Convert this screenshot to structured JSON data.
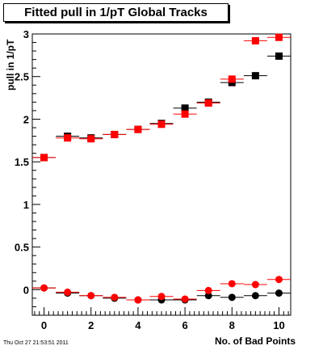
{
  "title": "Fitted pull in 1/pT  Global Tracks",
  "timestamp": "Thu Oct 27 21:53:51 2011",
  "colors": {
    "series_black": "#000000",
    "series_red": "#ff0000",
    "axis": "#000000"
  },
  "chart_data": {
    "type": "scatter",
    "title": "Fitted pull in 1/pT  Global Tracks",
    "xlabel": "No. of Bad Points",
    "ylabel": "pull in 1/pT",
    "xlim": [
      -0.5,
      10.5
    ],
    "ylim": [
      -0.3,
      3.0
    ],
    "xticks": [
      "0",
      "2",
      "4",
      "6",
      "8",
      "10"
    ],
    "yticks": [
      "0",
      "0.5",
      "1",
      "1.5",
      "2",
      "2.5",
      "3"
    ],
    "grid": false,
    "series": [
      {
        "marker": "square",
        "color": "#000000",
        "x": [
          0,
          1,
          2,
          3,
          4,
          5,
          6,
          7,
          8,
          9,
          10
        ],
        "y": [
          1.55,
          1.8,
          1.78,
          1.82,
          1.88,
          1.95,
          2.13,
          2.2,
          2.43,
          2.51,
          2.74
        ]
      },
      {
        "marker": "square",
        "color": "#ff0000",
        "x": [
          0,
          1,
          2,
          3,
          4,
          5,
          6,
          7,
          8,
          9,
          10
        ],
        "y": [
          1.55,
          1.78,
          1.77,
          1.82,
          1.88,
          1.94,
          2.06,
          2.19,
          2.47,
          2.92,
          2.96
        ]
      },
      {
        "marker": "circle",
        "color": "#000000",
        "x": [
          0,
          1,
          2,
          3,
          4,
          5,
          6,
          7,
          8,
          9,
          10
        ],
        "y": [
          0.02,
          -0.04,
          -0.07,
          -0.1,
          -0.12,
          -0.12,
          -0.12,
          -0.07,
          -0.09,
          -0.07,
          -0.04
        ]
      },
      {
        "marker": "circle",
        "color": "#ff0000",
        "x": [
          0,
          1,
          2,
          3,
          4,
          5,
          6,
          7,
          8,
          9,
          10
        ],
        "y": [
          0.02,
          -0.03,
          -0.07,
          -0.09,
          -0.12,
          -0.08,
          -0.11,
          -0.01,
          0.07,
          0.06,
          0.12
        ]
      }
    ]
  }
}
